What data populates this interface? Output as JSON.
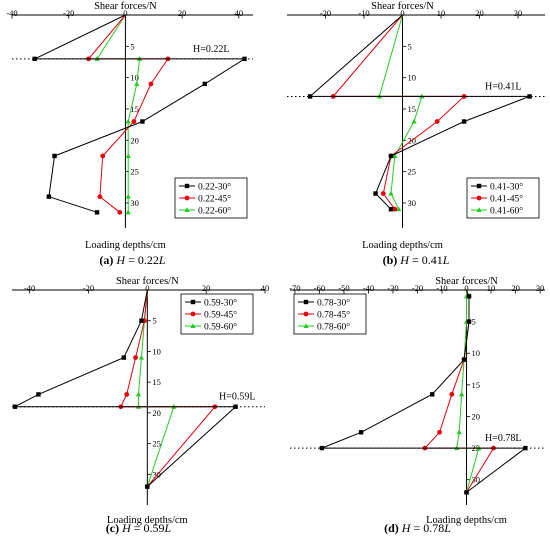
{
  "figure": {
    "series_colors": [
      "#000000",
      "#e8000b",
      "#22cc22"
    ],
    "series_markers": [
      "square",
      "circle",
      "triangle"
    ]
  },
  "chart_data": [
    {
      "type": "line",
      "caption": {
        "tag": "(a)",
        "var": "H",
        "eq": " = 0.22",
        "unit": "L"
      },
      "x_axis": {
        "label": "Shear forces/N",
        "ticks": [
          -40,
          -20,
          0,
          20,
          40
        ],
        "lim": [
          -40,
          45
        ],
        "position": "top"
      },
      "y_axis": {
        "label": "Loading depths/cm",
        "ticks": [
          5,
          10,
          15,
          20,
          25,
          30
        ],
        "lim": [
          0,
          34
        ],
        "inverted": true
      },
      "annotation": "H=0.22L",
      "interface_depth": 7,
      "legend": {
        "position": "lower-right"
      },
      "series": [
        {
          "name": "0.22-30°",
          "x": [
            0,
            -32,
            42,
            28,
            6,
            -25,
            -27,
            -10
          ],
          "y": [
            0,
            7,
            7,
            11,
            17,
            22.5,
            29,
            31.5
          ]
        },
        {
          "name": "0.22-45°",
          "x": [
            0,
            -13,
            15,
            9,
            3,
            -8,
            -9,
            -2
          ],
          "y": [
            0,
            7,
            7,
            11,
            17,
            22.5,
            29,
            31.5
          ]
        },
        {
          "name": "0.22-60°",
          "x": [
            0,
            -10,
            5,
            4,
            1,
            1,
            1,
            1
          ],
          "y": [
            0,
            7,
            7,
            11,
            17,
            22.5,
            29,
            31.5
          ]
        }
      ]
    },
    {
      "type": "line",
      "caption": {
        "tag": "(b)",
        "var": "H",
        "eq": " = 0.41",
        "unit": "L"
      },
      "x_axis": {
        "label": "Shear forces/N",
        "ticks": [
          -20,
          -10,
          0,
          10,
          20,
          30
        ],
        "lim": [
          -30,
          37
        ],
        "position": "top"
      },
      "y_axis": {
        "label": "Loading depths/cm",
        "ticks": [
          5,
          10,
          15,
          20,
          25,
          30
        ],
        "lim": [
          0,
          34
        ],
        "inverted": true
      },
      "annotation": "H=0.41L",
      "interface_depth": 13,
      "legend": {
        "position": "lower-right"
      },
      "series": [
        {
          "name": "0.41-30°",
          "x": [
            0,
            -24,
            33,
            16,
            -3,
            -7,
            -3
          ],
          "y": [
            0,
            13,
            13,
            17,
            22.5,
            28.5,
            31
          ]
        },
        {
          "name": "0.41-45°",
          "x": [
            0,
            -18,
            16,
            9,
            -3,
            -5,
            -2
          ],
          "y": [
            0,
            13,
            13,
            17,
            22.5,
            28.5,
            31
          ]
        },
        {
          "name": "0.41-60°",
          "x": [
            0,
            -6,
            5,
            3,
            -2,
            -3,
            -1
          ],
          "y": [
            0,
            13,
            13,
            17,
            22.5,
            28.5,
            31
          ]
        }
      ]
    },
    {
      "type": "line",
      "caption": {
        "tag": "(c)",
        "var": "H",
        "eq": " = 0.59",
        "unit": "L"
      },
      "x_axis": {
        "label": "Shear forces/N",
        "ticks": [
          -40,
          -20,
          0,
          20,
          40
        ],
        "lim": [
          -46,
          40
        ],
        "position": "top"
      },
      "y_axis": {
        "label": "Loading depths/cm",
        "ticks": [
          5,
          10,
          15,
          20,
          25,
          30
        ],
        "lim": [
          0,
          35
        ],
        "inverted": true
      },
      "annotation": "H=0.59L",
      "interface_depth": 19,
      "legend": {
        "position": "upper-right"
      },
      "series": [
        {
          "name": "0.59-30°",
          "x": [
            0,
            -2,
            -8,
            -37,
            -45,
            30,
            0
          ],
          "y": [
            0,
            5,
            11,
            17,
            19,
            19,
            32
          ]
        },
        {
          "name": "0.59-45°",
          "x": [
            0,
            -1,
            -4,
            -7,
            -9,
            23,
            0
          ],
          "y": [
            0,
            5,
            11,
            17,
            19,
            19,
            32
          ]
        },
        {
          "name": "0.59-60°",
          "x": [
            0,
            -1,
            -2,
            -3,
            -3,
            9,
            0
          ],
          "y": [
            0,
            5,
            11,
            17,
            19,
            19,
            32
          ]
        }
      ]
    },
    {
      "type": "line",
      "caption": {
        "tag": "(d)",
        "var": "H",
        "eq": " = 0.78",
        "unit": "L"
      },
      "x_axis": {
        "label": "Shear forces/N",
        "ticks": [
          -70,
          -60,
          -50,
          -40,
          -30,
          -20,
          -10,
          0,
          10,
          20,
          30
        ],
        "lim": [
          -72,
          32
        ],
        "position": "top"
      },
      "y_axis": {
        "label": "Loading depths/cm",
        "ticks": [
          5,
          10,
          15,
          20,
          25,
          30
        ],
        "lim": [
          0,
          34
        ],
        "inverted": true
      },
      "annotation": "H=0.78L",
      "interface_depth": 25,
      "legend": {
        "position": "upper-left"
      },
      "series": [
        {
          "name": "0.78-30°",
          "x": [
            0,
            1,
            1,
            -1,
            -14,
            -43,
            -59,
            24,
            0
          ],
          "y": [
            0,
            1,
            5,
            11,
            16.5,
            22.5,
            25,
            25,
            32
          ]
        },
        {
          "name": "0.78-45°",
          "x": [
            0,
            1,
            1,
            -1,
            -6,
            -11,
            -17,
            11,
            0
          ],
          "y": [
            0,
            1,
            5,
            11,
            16.5,
            22.5,
            25,
            25,
            32
          ]
        },
        {
          "name": "0.78-60°",
          "x": [
            0,
            0,
            0,
            -1,
            -2,
            -3,
            -4,
            5,
            0
          ],
          "y": [
            0,
            1,
            5,
            11,
            16.5,
            22.5,
            25,
            25,
            32
          ]
        }
      ]
    }
  ]
}
